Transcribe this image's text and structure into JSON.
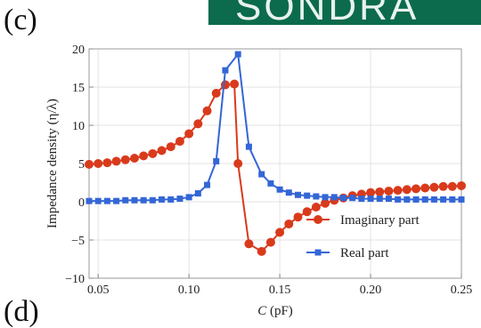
{
  "panel_labels": {
    "top": "(c)",
    "bottom": "(d)"
  },
  "logo": {
    "text": "SONDRA",
    "color": "#0b6b4c"
  },
  "chart_data": {
    "type": "line",
    "xlabel_italic": "C",
    "xlabel_unit": " (pF)",
    "ylabel": "Impedance density (η/λ)",
    "xlim": [
      0.045,
      0.25
    ],
    "ylim": [
      -10,
      20
    ],
    "xticks": [
      0.05,
      0.1,
      0.15,
      0.2,
      0.25
    ],
    "xtick_labels": [
      "0.05",
      "0.10",
      "0.15",
      "0.20",
      "0.25"
    ],
    "yticks": [
      -10,
      -5,
      0,
      5,
      10,
      15,
      20
    ],
    "ytick_labels": [
      "−10",
      "−5",
      "0",
      "5",
      "10",
      "15",
      "20"
    ],
    "grid": true,
    "legend_position": "lower-right",
    "series": [
      {
        "name": "Imaginary part",
        "color": "#d93a1c",
        "marker": "circle",
        "x": [
          0.045,
          0.05,
          0.055,
          0.06,
          0.065,
          0.07,
          0.075,
          0.08,
          0.085,
          0.09,
          0.095,
          0.1,
          0.105,
          0.11,
          0.115,
          0.12,
          0.125,
          0.127,
          0.133,
          0.14,
          0.145,
          0.15,
          0.155,
          0.16,
          0.165,
          0.17,
          0.175,
          0.18,
          0.185,
          0.19,
          0.195,
          0.2,
          0.205,
          0.21,
          0.215,
          0.22,
          0.225,
          0.23,
          0.235,
          0.24,
          0.245,
          0.25
        ],
        "values": [
          4.9,
          5.0,
          5.1,
          5.3,
          5.5,
          5.7,
          6.0,
          6.3,
          6.7,
          7.2,
          7.9,
          8.9,
          10.2,
          11.9,
          14.2,
          15.3,
          15.4,
          5.0,
          -5.5,
          -6.5,
          -5.3,
          -4.0,
          -2.9,
          -2.0,
          -1.3,
          -0.7,
          -0.2,
          0.2,
          0.5,
          0.8,
          1.0,
          1.2,
          1.3,
          1.4,
          1.5,
          1.6,
          1.7,
          1.8,
          1.9,
          2.0,
          2.0,
          2.1
        ]
      },
      {
        "name": "Real part",
        "color": "#3366d6",
        "marker": "square",
        "x": [
          0.045,
          0.05,
          0.055,
          0.06,
          0.065,
          0.07,
          0.075,
          0.08,
          0.085,
          0.09,
          0.095,
          0.1,
          0.105,
          0.11,
          0.115,
          0.12,
          0.127,
          0.133,
          0.14,
          0.145,
          0.15,
          0.155,
          0.16,
          0.165,
          0.17,
          0.175,
          0.18,
          0.185,
          0.19,
          0.195,
          0.2,
          0.205,
          0.21,
          0.215,
          0.22,
          0.225,
          0.23,
          0.235,
          0.24,
          0.245,
          0.25
        ],
        "values": [
          0.1,
          0.1,
          0.1,
          0.1,
          0.2,
          0.2,
          0.2,
          0.2,
          0.3,
          0.3,
          0.4,
          0.6,
          1.1,
          2.2,
          5.3,
          17.2,
          19.3,
          7.2,
          3.6,
          2.4,
          1.6,
          1.2,
          0.9,
          0.8,
          0.7,
          0.6,
          0.6,
          0.5,
          0.5,
          0.4,
          0.4,
          0.4,
          0.4,
          0.3,
          0.3,
          0.3,
          0.3,
          0.3,
          0.3,
          0.3,
          0.3
        ]
      }
    ]
  }
}
